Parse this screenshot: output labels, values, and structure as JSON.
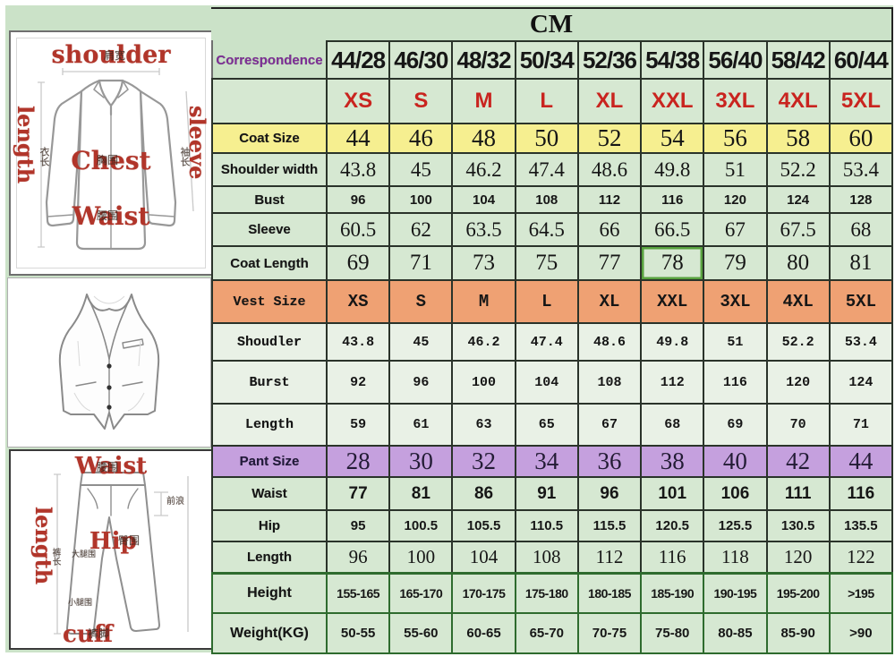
{
  "title": "CM",
  "diagrams": {
    "jacket": {
      "labels": {
        "shoulder": "shoulder",
        "length": "length",
        "sleeve": "sleeve",
        "chest": "Chest",
        "waist": "Waist"
      },
      "cjk": {
        "shoulder": "肩宽",
        "length": "衣长",
        "sleeve": "袖长",
        "chest": "胸围",
        "waist": "腰围"
      }
    },
    "pants": {
      "labels": {
        "waist": "Waist",
        "length": "length",
        "hip": "Hip",
        "cuff": "cuff"
      },
      "cjk": {
        "waist": "腰围",
        "length": "裤长",
        "hip": "臀围",
        "cuff": "裤脚",
        "rise": "前浪",
        "thigh": "大腿围",
        "calf": "小腿围"
      }
    }
  },
  "table": {
    "rows": [
      {
        "id": "corr",
        "label": "Correspondence",
        "values": [
          "44/28",
          "46/30",
          "48/32",
          "50/34",
          "52/36",
          "54/38",
          "56/40",
          "58/42",
          "60/44"
        ]
      },
      {
        "id": "letters",
        "label": "",
        "values": [
          "XS",
          "S",
          "M",
          "L",
          "XL",
          "XXL",
          "3XL",
          "4XL",
          "5XL"
        ]
      },
      {
        "id": "coat-size",
        "label": "Coat Size",
        "values": [
          "44",
          "46",
          "48",
          "50",
          "52",
          "54",
          "56",
          "58",
          "60"
        ]
      },
      {
        "id": "shoulder-width",
        "label": "Shoulder width",
        "values": [
          "43.8",
          "45",
          "46.2",
          "47.4",
          "48.6",
          "49.8",
          "51",
          "52.2",
          "53.4"
        ]
      },
      {
        "id": "bust",
        "label": "Bust",
        "values": [
          "96",
          "100",
          "104",
          "108",
          "112",
          "116",
          "120",
          "124",
          "128"
        ]
      },
      {
        "id": "sleeve",
        "label": "Sleeve",
        "values": [
          "60.5",
          "62",
          "63.5",
          "64.5",
          "66",
          "66.5",
          "67",
          "67.5",
          "68"
        ]
      },
      {
        "id": "coat-length",
        "label": "Coat Length",
        "values": [
          "69",
          "71",
          "73",
          "75",
          "77",
          "78",
          "79",
          "80",
          "81"
        ],
        "highlight_col": 5
      },
      {
        "id": "vest-size",
        "label": "Vest Size",
        "values": [
          "XS",
          "S",
          "M",
          "L",
          "XL",
          "XXL",
          "3XL",
          "4XL",
          "5XL"
        ]
      },
      {
        "id": "vest-shoulder",
        "label": "Shoudler",
        "values": [
          "43.8",
          "45",
          "46.2",
          "47.4",
          "48.6",
          "49.8",
          "51",
          "52.2",
          "53.4"
        ]
      },
      {
        "id": "vest-bust",
        "label": "Burst",
        "values": [
          "92",
          "96",
          "100",
          "104",
          "108",
          "112",
          "116",
          "120",
          "124"
        ]
      },
      {
        "id": "vest-length",
        "label": "Length",
        "values": [
          "59",
          "61",
          "63",
          "65",
          "67",
          "68",
          "69",
          "70",
          "71"
        ]
      },
      {
        "id": "pant-size",
        "label": "Pant Size",
        "values": [
          "28",
          "30",
          "32",
          "34",
          "36",
          "38",
          "40",
          "42",
          "44"
        ]
      },
      {
        "id": "pant-waist",
        "label": "Waist",
        "values": [
          "77",
          "81",
          "86",
          "91",
          "96",
          "101",
          "106",
          "111",
          "116"
        ]
      },
      {
        "id": "pant-hip",
        "label": "Hip",
        "values": [
          "95",
          "100.5",
          "105.5",
          "110.5",
          "115.5",
          "120.5",
          "125.5",
          "130.5",
          "135.5"
        ]
      },
      {
        "id": "pant-length",
        "label": "Length",
        "values": [
          "96",
          "100",
          "104",
          "108",
          "112",
          "116",
          "118",
          "120",
          "122"
        ]
      },
      {
        "id": "height",
        "label": "Height",
        "values": [
          "155-165",
          "165-170",
          "170-175",
          "175-180",
          "180-185",
          "185-190",
          "190-195",
          "195-200",
          ">195"
        ]
      },
      {
        "id": "weight",
        "label": "Weight(KG)",
        "values": [
          "50-55",
          "55-60",
          "60-65",
          "65-70",
          "70-75",
          "75-80",
          "80-85",
          "85-90",
          ">90"
        ]
      }
    ]
  },
  "colors": {
    "background_green": "#cbe2c8",
    "cell_green": "#d6e8d2",
    "vest_cell_green": "#e9f1e6",
    "coat_row_yellow": "#f6ef90",
    "vest_row_orange": "#efa173",
    "pant_row_purple": "#c5a0de",
    "red_text": "#c9241f",
    "purple_text": "#7e2f96",
    "highlight_green": "#58a23f"
  }
}
